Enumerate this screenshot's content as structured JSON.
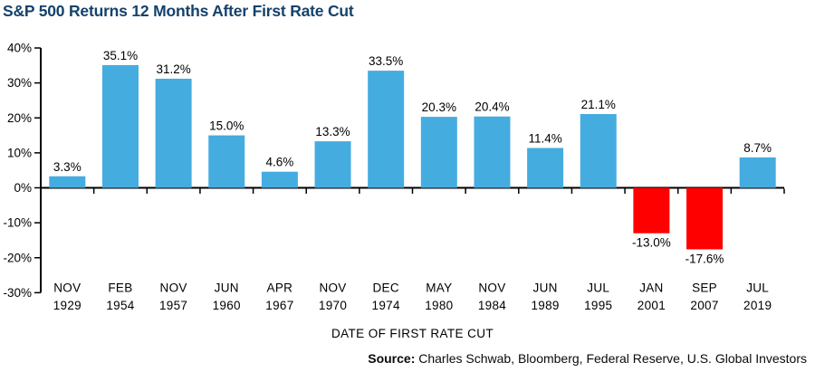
{
  "page": {
    "title": "S&P 500 Returns 12 Months After First Rate Cut",
    "source_label": "Source:",
    "source_text": " Charles Schwab, Bloomberg, Federal Reserve, U.S. Global Investors"
  },
  "chart_data": {
    "type": "bar",
    "title": "S&P 500 Returns 12 Months After First Rate Cut",
    "xlabel": "DATE OF FIRST RATE CUT",
    "ylabel": "",
    "categories": [
      [
        "NOV",
        "1929"
      ],
      [
        "FEB",
        "1954"
      ],
      [
        "NOV",
        "1957"
      ],
      [
        "JUN",
        "1960"
      ],
      [
        "APR",
        "1967"
      ],
      [
        "NOV",
        "1970"
      ],
      [
        "DEC",
        "1974"
      ],
      [
        "MAY",
        "1980"
      ],
      [
        "NOV",
        "1984"
      ],
      [
        "JUN",
        "1989"
      ],
      [
        "JUL",
        "1995"
      ],
      [
        "JAN",
        "2001"
      ],
      [
        "SEP",
        "2007"
      ],
      [
        "JUL",
        "2019"
      ]
    ],
    "values": [
      3.3,
      35.1,
      31.2,
      15.0,
      4.6,
      13.3,
      33.5,
      20.3,
      20.4,
      11.4,
      21.1,
      -13.0,
      -17.6,
      8.7
    ],
    "labels": [
      "3.3%",
      "35.1%",
      "31.2%",
      "15.0%",
      "4.6%",
      "13.3%",
      "33.5%",
      "20.3%",
      "20.4%",
      "11.4%",
      "21.1%",
      "-13.0%",
      "-17.6%",
      "8.7%"
    ],
    "ylim": [
      -30,
      40
    ],
    "yticks": [
      40,
      30,
      20,
      10,
      0,
      -10,
      -20,
      -30
    ],
    "ytick_labels": [
      "40%",
      "30%",
      "20%",
      "10%",
      "0%",
      "-10%",
      "-20%",
      "-30%"
    ],
    "grid": false,
    "legend": null,
    "colors": {
      "positive_bar": "#45ACE0",
      "negative_bar": "#FE0000",
      "axis": "#000000",
      "title_text": "#14426B",
      "label_text": "#000000"
    }
  }
}
